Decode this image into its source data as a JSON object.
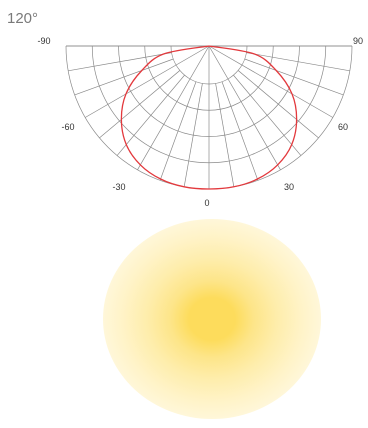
{
  "beam_angle_label": "120°",
  "chart_data": {
    "type": "polar-light-distribution",
    "title": "120°",
    "angle_ticks": [
      {
        "angle": -90,
        "label": "-90"
      },
      {
        "angle": 90,
        "label": "90"
      },
      {
        "angle": -60,
        "label": "-60"
      },
      {
        "angle": 60,
        "label": "60"
      },
      {
        "angle": -30,
        "label": "-30"
      },
      {
        "angle": 30,
        "label": "30"
      },
      {
        "angle": 0,
        "label": "0"
      }
    ],
    "spoke_step_deg": 10,
    "ring_count": 5,
    "curve_color": "#e3393d",
    "grid_color": "#8a8a8a",
    "curve": [
      {
        "angle": 0,
        "r": 1.0
      },
      {
        "angle": 10,
        "r": 1.0
      },
      {
        "angle": 20,
        "r": 0.99
      },
      {
        "angle": 30,
        "r": 0.96
      },
      {
        "angle": 40,
        "r": 0.9
      },
      {
        "angle": 50,
        "r": 0.8
      },
      {
        "angle": 60,
        "r": 0.67
      },
      {
        "angle": 70,
        "r": 0.5
      },
      {
        "angle": 80,
        "r": 0.32
      },
      {
        "angle": 90,
        "r": 0.0
      }
    ]
  },
  "light_spot": {
    "core_color": "#fddc5c"
  }
}
